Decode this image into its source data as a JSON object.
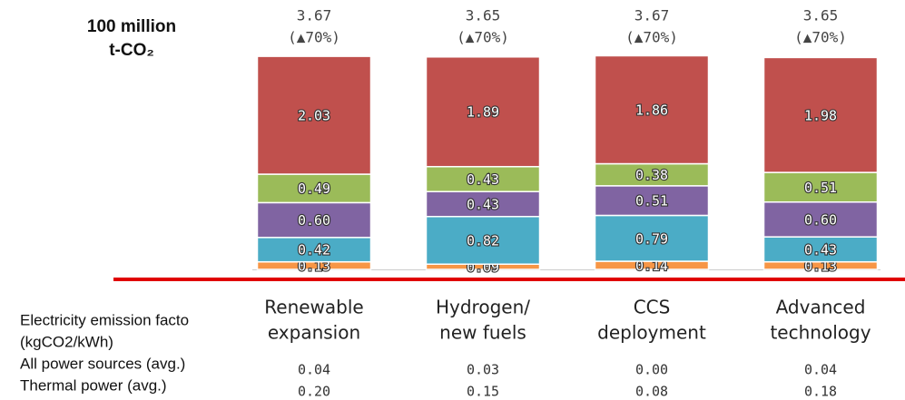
{
  "chart_data": {
    "type": "stacked_bar",
    "ylabel_lines": [
      "100 million",
      "t-CO₂"
    ],
    "categories": [
      [
        "Renewable",
        "expansion"
      ],
      [
        "Hydrogen/",
        "new fuels"
      ],
      [
        "CCS",
        "deployment"
      ],
      [
        "Advanced",
        "technology"
      ]
    ],
    "ylim": [
      0,
      4
    ],
    "series": [
      {
        "color": "#f79646",
        "values": [
          0.13,
          0.09,
          0.14,
          0.13
        ]
      },
      {
        "color": "#4bacc6",
        "values": [
          0.42,
          0.82,
          0.79,
          0.43
        ]
      },
      {
        "color": "#8064a2",
        "values": [
          0.6,
          0.43,
          0.51,
          0.6
        ],
        "value_labels": [
          "0.60",
          "0.43",
          "0.51",
          "0.60"
        ]
      },
      {
        "color": "#9bbb59",
        "values": [
          0.49,
          0.43,
          0.38,
          0.51
        ]
      },
      {
        "color": "#c0504d",
        "values": [
          2.03,
          1.89,
          1.86,
          1.98
        ]
      }
    ],
    "totals": [
      3.67,
      3.65,
      3.67,
      3.65
    ],
    "total_notes": [
      "(▲70%)",
      "(▲70%)",
      "(▲70%)",
      "(▲70%)"
    ],
    "emission_table": {
      "title": "Electricity emission facto",
      "unit": "(kgCO2/kWh)",
      "rows": [
        {
          "label": "All power sources (avg.)",
          "values": [
            "0.04",
            "0.03",
            "0.00",
            "0.04"
          ]
        },
        {
          "label": "Thermal power (avg.)",
          "values": [
            "0.20",
            "0.15",
            "0.08",
            "0.18"
          ]
        }
      ]
    }
  }
}
